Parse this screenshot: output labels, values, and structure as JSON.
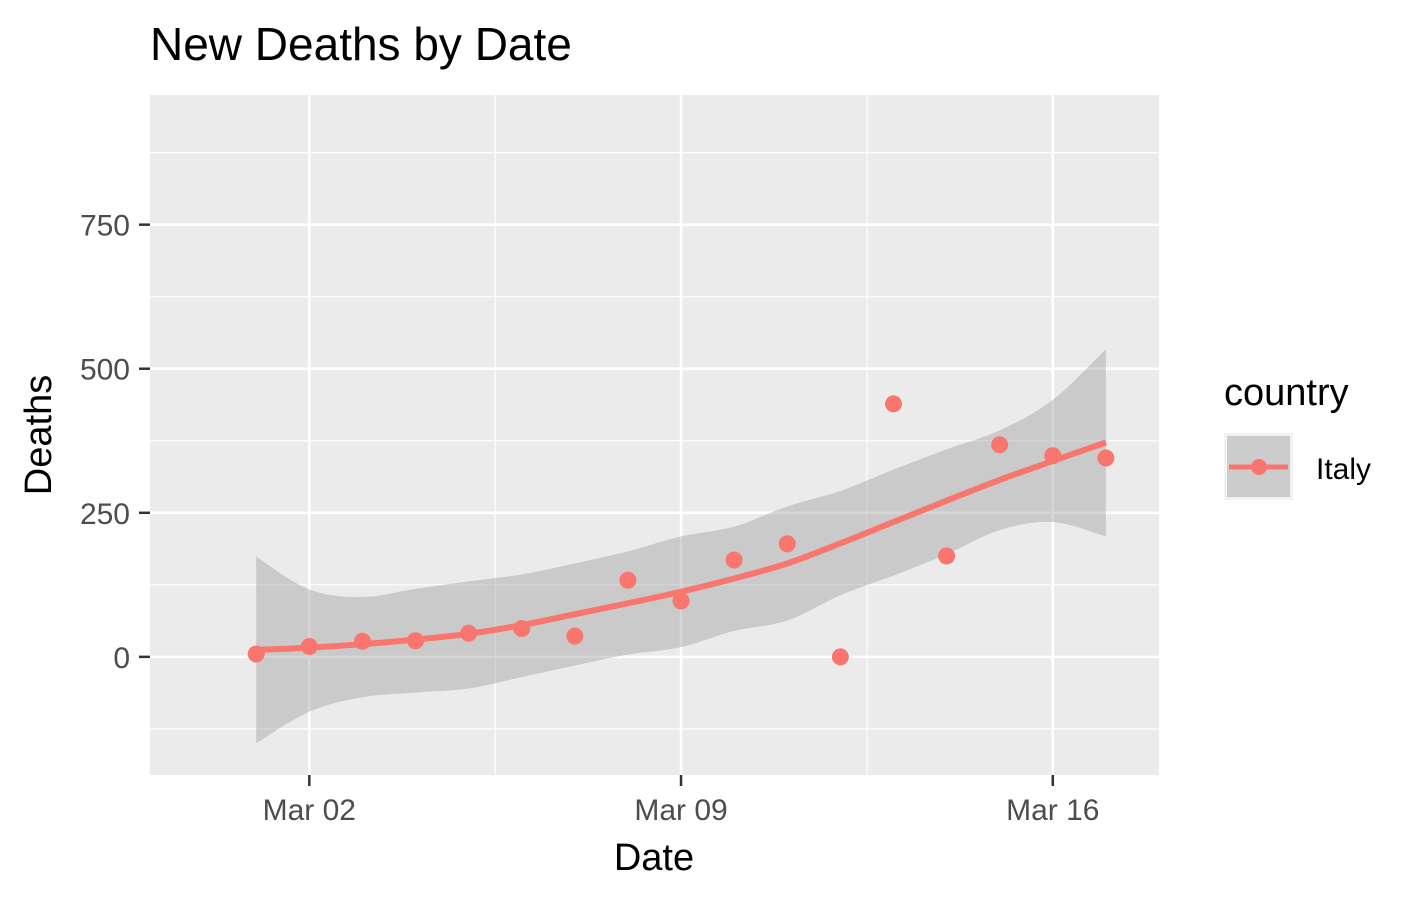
{
  "chart_data": {
    "type": "scatter",
    "title": "New Deaths by Date",
    "xlabel": "Date",
    "ylabel": "Deaths",
    "x_ticks": [
      "Mar 02",
      "Mar 09",
      "Mar 16"
    ],
    "x_tick_dates": [
      "2020-03-02",
      "2020-03-09",
      "2020-03-16"
    ],
    "xlim": [
      "2020-02-28",
      "2020-03-18"
    ],
    "y_ticks": [
      0,
      250,
      500,
      750
    ],
    "y_tick_labels": [
      "0",
      "250",
      "500",
      "750"
    ],
    "ylim": [
      -205,
      975
    ],
    "grid": true,
    "legend": {
      "title": "country",
      "placement": "right",
      "entries": [
        {
          "label": "Italy",
          "color": "#F8766D"
        }
      ]
    },
    "series": [
      {
        "name": "Italy",
        "color": "#F8766D",
        "points": [
          {
            "x": "2020-03-01",
            "y": 5
          },
          {
            "x": "2020-03-02",
            "y": 18
          },
          {
            "x": "2020-03-03",
            "y": 27
          },
          {
            "x": "2020-03-04",
            "y": 28
          },
          {
            "x": "2020-03-05",
            "y": 41
          },
          {
            "x": "2020-03-06",
            "y": 49
          },
          {
            "x": "2020-03-07",
            "y": 36
          },
          {
            "x": "2020-03-08",
            "y": 133
          },
          {
            "x": "2020-03-09",
            "y": 97
          },
          {
            "x": "2020-03-10",
            "y": 168
          },
          {
            "x": "2020-03-11",
            "y": 196
          },
          {
            "x": "2020-03-12",
            "y": 0
          },
          {
            "x": "2020-03-13",
            "y": 439
          },
          {
            "x": "2020-03-14",
            "y": 175
          },
          {
            "x": "2020-03-15",
            "y": 368
          },
          {
            "x": "2020-03-16",
            "y": 349
          },
          {
            "x": "2020-03-17",
            "y": 345
          }
        ],
        "smooth": [
          {
            "x": "2020-03-01",
            "y": 12,
            "lo": -150,
            "hi": 174
          },
          {
            "x": "2020-03-02",
            "y": 16,
            "lo": -95,
            "hi": 117
          },
          {
            "x": "2020-03-03",
            "y": 22,
            "lo": -70,
            "hi": 104
          },
          {
            "x": "2020-03-04",
            "y": 30,
            "lo": -62,
            "hi": 118
          },
          {
            "x": "2020-03-05",
            "y": 40,
            "lo": -55,
            "hi": 131
          },
          {
            "x": "2020-03-06",
            "y": 55,
            "lo": -35,
            "hi": 143
          },
          {
            "x": "2020-03-07",
            "y": 74,
            "lo": -15,
            "hi": 162
          },
          {
            "x": "2020-03-08",
            "y": 93,
            "lo": 4,
            "hi": 183
          },
          {
            "x": "2020-03-09",
            "y": 113,
            "lo": 17,
            "hi": 209
          },
          {
            "x": "2020-03-10",
            "y": 136,
            "lo": 45,
            "hi": 226
          },
          {
            "x": "2020-03-11",
            "y": 162,
            "lo": 63,
            "hi": 261
          },
          {
            "x": "2020-03-12",
            "y": 197,
            "lo": 107,
            "hi": 288
          },
          {
            "x": "2020-03-13",
            "y": 234,
            "lo": 141,
            "hi": 325
          },
          {
            "x": "2020-03-14",
            "y": 271,
            "lo": 178,
            "hi": 360
          },
          {
            "x": "2020-03-15",
            "y": 307,
            "lo": 220,
            "hi": 393
          },
          {
            "x": "2020-03-16",
            "y": 340,
            "lo": 234,
            "hi": 446
          },
          {
            "x": "2020-03-17",
            "y": 372,
            "lo": 209,
            "hi": 534
          }
        ]
      }
    ]
  }
}
